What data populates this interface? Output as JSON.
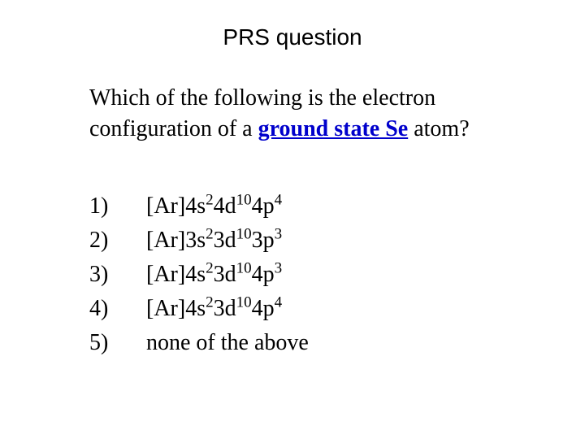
{
  "title": "PRS question",
  "question": {
    "prefix": "Which of the following is the electron configuration of a ",
    "keyword": "ground state Se",
    "suffix": " atom?"
  },
  "options": [
    {
      "num": "1)",
      "parts": [
        "[Ar]4s",
        "2",
        "4d",
        "10",
        "4p",
        "4"
      ]
    },
    {
      "num": "2)",
      "parts": [
        "[Ar]3s",
        "2",
        "3d",
        "10",
        "3p",
        "3"
      ]
    },
    {
      "num": "3)",
      "parts": [
        "[Ar]4s",
        "2",
        "3d",
        "10",
        "4p",
        "3"
      ]
    },
    {
      "num": "4)",
      "parts": [
        "[Ar]4s",
        "2",
        "3d",
        "10",
        "4p",
        "4"
      ]
    },
    {
      "num": "5)",
      "plain": "none of the above"
    }
  ],
  "colors": {
    "background": "#ffffff",
    "text": "#000000",
    "keyword": "#0000cc"
  },
  "fonts": {
    "title_family": "Arial",
    "body_family": "Times New Roman",
    "title_size_pt": 21,
    "body_size_pt": 21
  }
}
